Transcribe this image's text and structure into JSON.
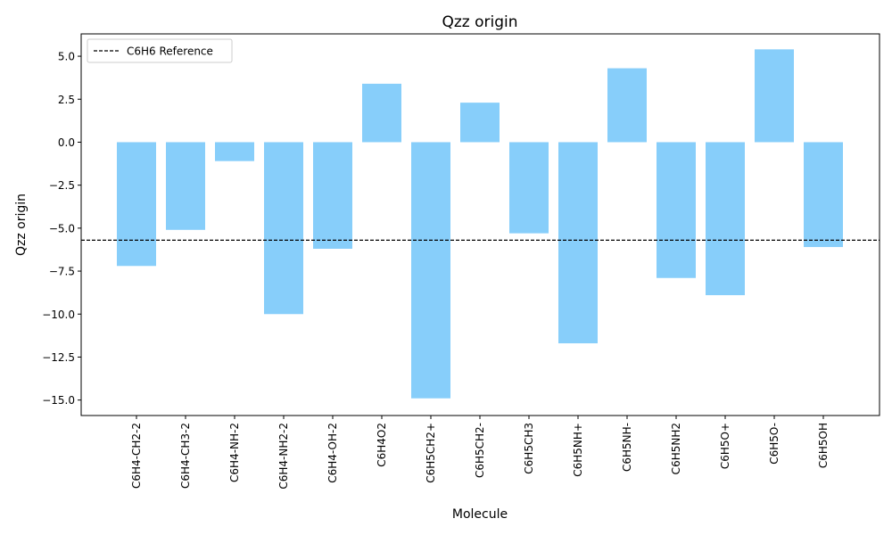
{
  "chart_data": {
    "type": "bar",
    "title": "Qzz origin",
    "xlabel": "Molecule",
    "ylabel": "Qzz origin",
    "categories": [
      "C6H4-CH2-2",
      "C6H4-CH3-2",
      "C6H4-NH-2",
      "C6H4-NH2-2",
      "C6H4-OH-2",
      "C6H4O2",
      "C6H5CH2+",
      "C6H5CH2-",
      "C6H5CH3",
      "C6H5NH+",
      "C6H5NH-",
      "C6H5NH2",
      "C6H5O+",
      "C6H5O-",
      "C6H5OH"
    ],
    "values": [
      -7.2,
      -5.1,
      -1.1,
      -10.0,
      -6.2,
      3.4,
      -14.9,
      2.3,
      -5.3,
      -11.7,
      4.3,
      -7.9,
      -8.9,
      5.4,
      -6.1
    ],
    "ylim": [
      -15.9,
      6.3
    ],
    "yticks": [
      "5.0",
      "2.5",
      "0.0",
      "−2.5",
      "−5.0",
      "−7.5",
      "−10.0",
      "−12.5",
      "−15.0"
    ],
    "ytick_values": [
      5.0,
      2.5,
      0.0,
      -2.5,
      -5.0,
      -7.5,
      -10.0,
      -12.5,
      -15.0
    ],
    "bar_color": "#87CEFA",
    "reference": {
      "label": "C6H6 Reference",
      "value": -5.7,
      "color": "#000000"
    },
    "legend_position": "top-left",
    "grid": false
  }
}
